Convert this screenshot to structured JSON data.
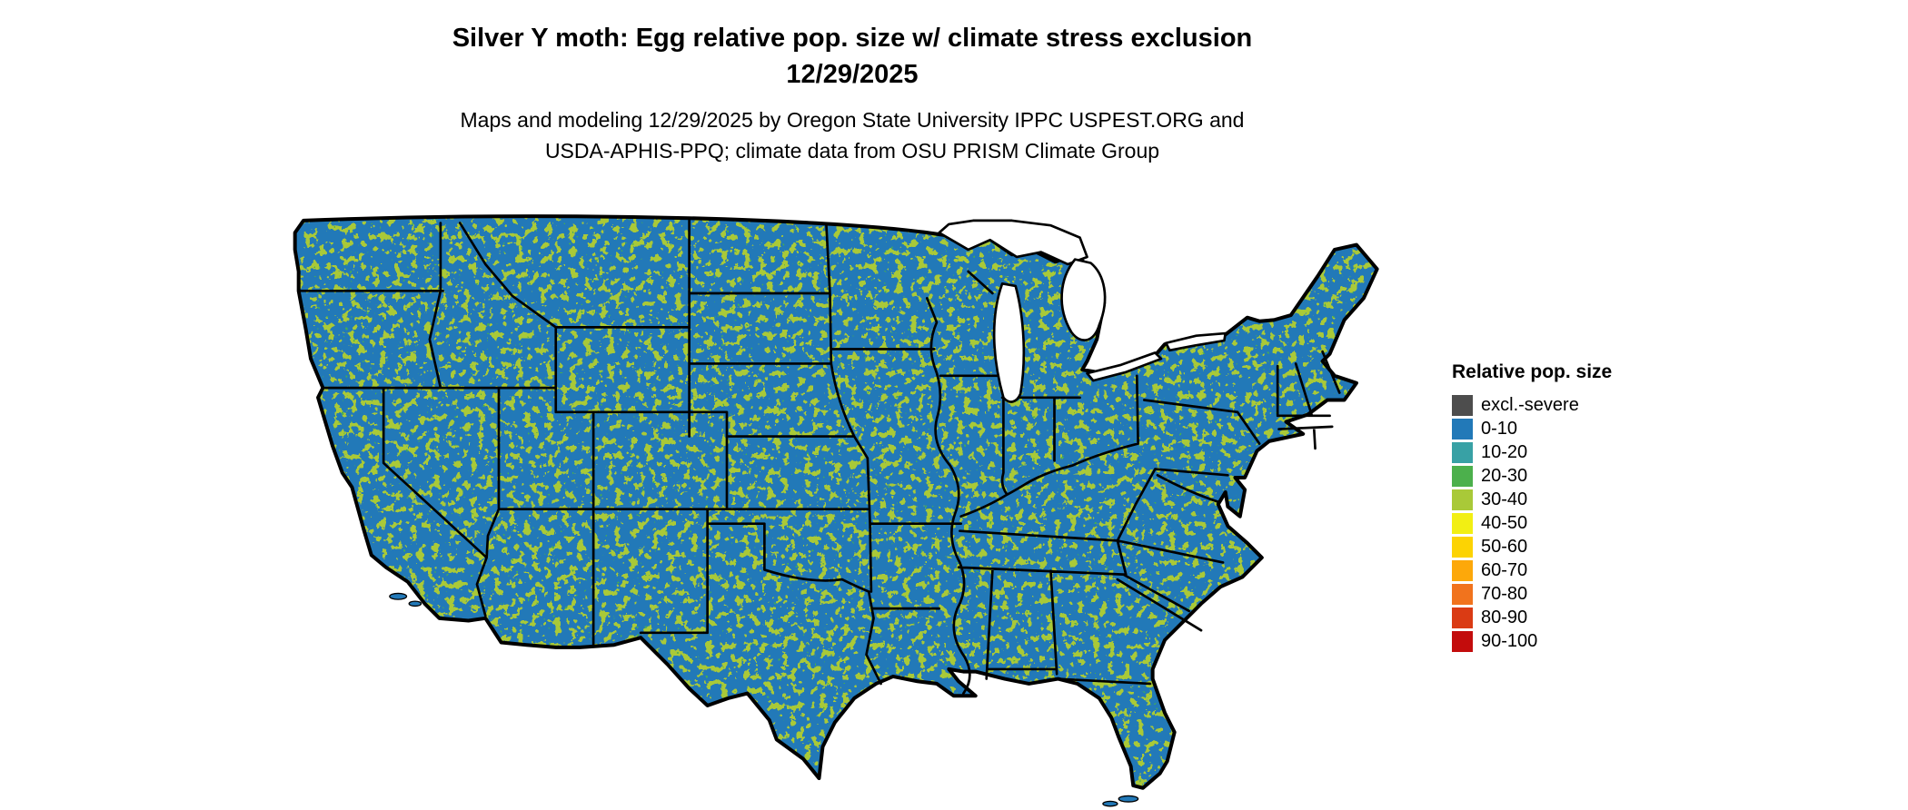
{
  "title": {
    "line1": "Silver Y moth: Egg relative pop. size w/ climate stress exclusion",
    "line2": "12/29/2025"
  },
  "subtitle": {
    "line1": "Maps and modeling 12/29/2025 by Oregon State University IPPC USPEST.ORG and",
    "line2": "USDA-APHIS-PPQ; climate data from OSU PRISM Climate Group"
  },
  "map": {
    "land_color": "#2279b8",
    "border_color": "#000000",
    "lake_color": "#ffffff",
    "speckle_colors": [
      "#a9c938",
      "#45ad52"
    ]
  },
  "legend": {
    "title": "Relative pop. size",
    "entries": [
      {
        "label": "excl.-severe",
        "color": "#4d4d4d"
      },
      {
        "label": "0-10",
        "color": "#2279b8"
      },
      {
        "label": "10-20",
        "color": "#38a1a5"
      },
      {
        "label": "20-30",
        "color": "#4cb04c"
      },
      {
        "label": "30-40",
        "color": "#a9c938"
      },
      {
        "label": "40-50",
        "color": "#f2ef13"
      },
      {
        "label": "50-60",
        "color": "#fcd303"
      },
      {
        "label": "60-70",
        "color": "#fda80a"
      },
      {
        "label": "70-80",
        "color": "#f1731d"
      },
      {
        "label": "80-90",
        "color": "#da3b14"
      },
      {
        "label": "90-100",
        "color": "#c30c0c"
      }
    ]
  }
}
